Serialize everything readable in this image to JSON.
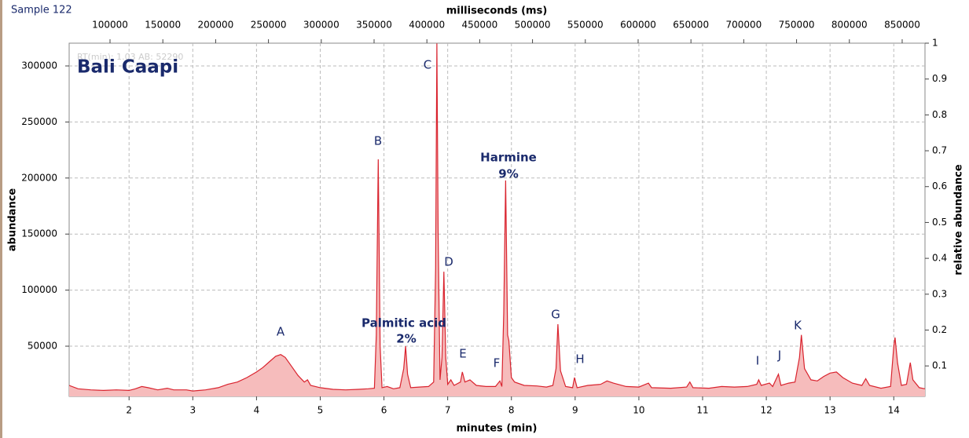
{
  "chart_data": {
    "type": "line",
    "sample": "Sample 122",
    "title": "Bali Caapi",
    "overlay_text": "RT(min): 1.03 AB: 52290",
    "xlabel": "minutes (min)",
    "x2label": "milliseconds (ms)",
    "ylabel": "abundance",
    "y2label": "relative abundance",
    "xlim": [
      1.06,
      14.49
    ],
    "xticks": [
      2,
      3,
      4,
      5,
      6,
      7,
      8,
      9,
      10,
      11,
      12,
      13,
      14
    ],
    "x2lim": [
      61300,
      871600
    ],
    "x2ticks": [
      100000,
      150000,
      200000,
      250000,
      300000,
      350000,
      400000,
      450000,
      500000,
      550000,
      600000,
      650000,
      700000,
      750000,
      800000,
      850000
    ],
    "ylim": [
      5200,
      320300
    ],
    "yticks": [
      50000,
      100000,
      150000,
      200000,
      250000,
      300000
    ],
    "y2lim": [
      0.015,
      1
    ],
    "y2ticks": [
      0.1,
      0.2,
      0.3,
      0.4,
      0.5,
      0.6,
      0.7,
      0.8,
      0.9,
      1
    ],
    "grid": true,
    "color": "#d9232e",
    "fill": "#f6bcbc",
    "annotations": [
      "A",
      "B",
      "Palmitic acid",
      "2%",
      "C",
      "D",
      "E",
      "F",
      "Harmine",
      "9%",
      "G",
      "H",
      "I",
      "J",
      "K"
    ],
    "x": [
      1.06,
      1.2,
      1.4,
      1.6,
      1.8,
      2.0,
      2.1,
      2.2,
      2.3,
      2.45,
      2.6,
      2.7,
      2.9,
      3.0,
      3.2,
      3.4,
      3.55,
      3.7,
      3.85,
      4.0,
      4.1,
      4.2,
      4.3,
      4.38,
      4.45,
      4.55,
      4.65,
      4.75,
      4.8,
      4.85,
      5.0,
      5.2,
      5.4,
      5.6,
      5.75,
      5.85,
      5.88,
      5.91,
      5.94,
      5.97,
      6.05,
      6.15,
      6.25,
      6.31,
      6.34,
      6.37,
      6.42,
      6.55,
      6.7,
      6.78,
      6.81,
      6.83,
      6.85,
      6.88,
      6.91,
      6.94,
      6.97,
      7.0,
      7.05,
      7.1,
      7.2,
      7.23,
      7.27,
      7.35,
      7.45,
      7.6,
      7.75,
      7.82,
      7.85,
      7.88,
      7.91,
      7.94,
      7.96,
      8.0,
      8.05,
      8.2,
      8.4,
      8.55,
      8.65,
      8.7,
      8.73,
      8.77,
      8.85,
      8.96,
      8.99,
      9.03,
      9.2,
      9.4,
      9.5,
      9.6,
      9.8,
      10.0,
      10.15,
      10.2,
      10.5,
      10.75,
      10.8,
      10.85,
      11.1,
      11.3,
      11.5,
      11.7,
      11.85,
      11.88,
      11.92,
      12.05,
      12.1,
      12.19,
      12.23,
      12.35,
      12.45,
      12.52,
      12.55,
      12.6,
      12.7,
      12.8,
      12.9,
      13.0,
      13.1,
      13.2,
      13.35,
      13.5,
      13.56,
      13.62,
      13.8,
      13.95,
      14.0,
      14.02,
      14.06,
      14.12,
      14.2,
      14.26,
      14.3,
      14.4,
      14.49
    ],
    "values": [
      15000,
      12000,
      11000,
      10500,
      11000,
      10500,
      12000,
      14000,
      13000,
      11000,
      12500,
      11000,
      11000,
      10000,
      11000,
      13000,
      16000,
      18000,
      22000,
      27000,
      31000,
      36000,
      41000,
      42500,
      40000,
      32000,
      24000,
      18000,
      20000,
      15000,
      13000,
      11500,
      11000,
      11500,
      12000,
      12500,
      60000,
      216700,
      50000,
      13000,
      14000,
      12000,
      13000,
      30000,
      50000,
      25000,
      13000,
      13500,
      14000,
      18000,
      120000,
      320000,
      150000,
      20000,
      40000,
      116500,
      40000,
      16000,
      20000,
      15000,
      18000,
      27000,
      18000,
      20000,
      15000,
      14000,
      14000,
      19000,
      14000,
      80000,
      197800,
      60000,
      55000,
      22000,
      18000,
      15000,
      14500,
      13500,
      15000,
      30000,
      69600,
      28000,
      14000,
      13000,
      22000,
      13000,
      15000,
      16000,
      19000,
      17000,
      14000,
      13500,
      17000,
      13000,
      12500,
      13500,
      18000,
      13000,
      12500,
      14000,
      13500,
      14000,
      16000,
      20000,
      15000,
      17000,
      14000,
      25000,
      15000,
      17000,
      18000,
      40000,
      60000,
      30000,
      20000,
      19000,
      23000,
      26000,
      27000,
      22000,
      17000,
      15000,
      21000,
      15000,
      12500,
      14000,
      50000,
      57700,
      35000,
      15000,
      16000,
      35300,
      20000,
      13000,
      12000
    ]
  }
}
